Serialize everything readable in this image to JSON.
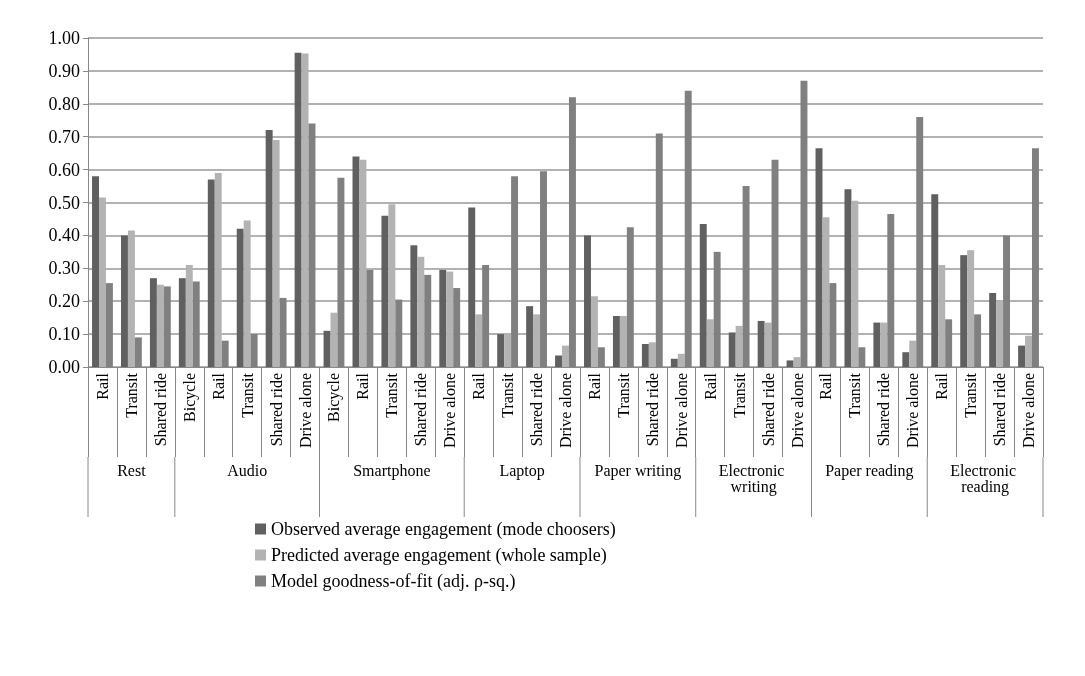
{
  "chart_data": {
    "type": "bar",
    "categories": [
      "Rail",
      "Transit",
      "Shared ride",
      "Bicycle",
      "Rail",
      "Transit",
      "Shared ride",
      "Drive alone",
      "Bicycle",
      "Rail",
      "Transit",
      "Shared ride",
      "Drive alone",
      "Rail",
      "Transit",
      "Shared ride",
      "Drive alone",
      "Rail",
      "Transit",
      "Shared ride",
      "Drive alone",
      "Rail",
      "Transit",
      "Shared ride",
      "Drive alone",
      "Rail",
      "Transit",
      "Shared ride",
      "Drive alone",
      "Rail",
      "Transit",
      "Shared ride",
      "Drive alone"
    ],
    "series": [
      {
        "name": "Observed average engagement (mode choosers)",
        "color": "#606060",
        "values": [
          0.58,
          0.4,
          0.27,
          0.27,
          0.57,
          0.42,
          0.72,
          0.955,
          0.11,
          0.64,
          0.46,
          0.37,
          0.295,
          0.485,
          0.1,
          0.185,
          0.035,
          0.4,
          0.155,
          0.07,
          0.025,
          0.435,
          0.105,
          0.14,
          0.02,
          0.665,
          0.54,
          0.135,
          0.045,
          0.525,
          0.34,
          0.225,
          0.065
        ]
      },
      {
        "name": "Predicted average engagement (whole sample)",
        "color": "#b3b3b3",
        "values": [
          0.515,
          0.415,
          0.25,
          0.31,
          0.59,
          0.445,
          0.69,
          0.953,
          0.165,
          0.63,
          0.495,
          0.335,
          0.29,
          0.16,
          0.1,
          0.16,
          0.065,
          0.215,
          0.155,
          0.075,
          0.04,
          0.145,
          0.125,
          0.135,
          0.03,
          0.455,
          0.505,
          0.135,
          0.08,
          0.31,
          0.355,
          0.2,
          0.095
        ]
      },
      {
        "name": "Model goodness-of-fit (adj. ρ-sq.)",
        "color": "#808080",
        "values": [
          0.255,
          0.09,
          0.245,
          0.26,
          0.08,
          0.1,
          0.21,
          0.74,
          0.575,
          0.295,
          0.205,
          0.28,
          0.24,
          0.31,
          0.58,
          0.595,
          0.82,
          0.06,
          0.425,
          0.71,
          0.84,
          0.35,
          0.55,
          0.63,
          0.87,
          0.255,
          0.06,
          0.465,
          0.76,
          0.145,
          0.16,
          0.4,
          0.665
        ]
      }
    ],
    "annotations": [
      "Rest",
      "Audio",
      "Smartphone",
      "Laptop",
      "Paper writing",
      "Electronic writing",
      "Paper reading",
      "Electronic reading"
    ],
    "ylim": [
      0,
      1
    ],
    "yticks": [
      {
        "value": 0,
        "label": "0.00"
      },
      {
        "value": 0.1,
        "label": "0.10"
      },
      {
        "value": 0.2,
        "label": "0.20"
      },
      {
        "value": 0.3,
        "label": "0.30"
      },
      {
        "value": 0.4,
        "label": "0.40"
      },
      {
        "value": 0.5,
        "label": "0.50"
      },
      {
        "value": 0.6,
        "label": "0.60"
      },
      {
        "value": 0.7,
        "label": "0.70"
      },
      {
        "value": 0.8,
        "label": "0.80"
      },
      {
        "value": 0.9,
        "label": "0.90"
      },
      {
        "value": 1,
        "label": "1.00"
      }
    ],
    "grid": "y",
    "legend": "bottom"
  }
}
